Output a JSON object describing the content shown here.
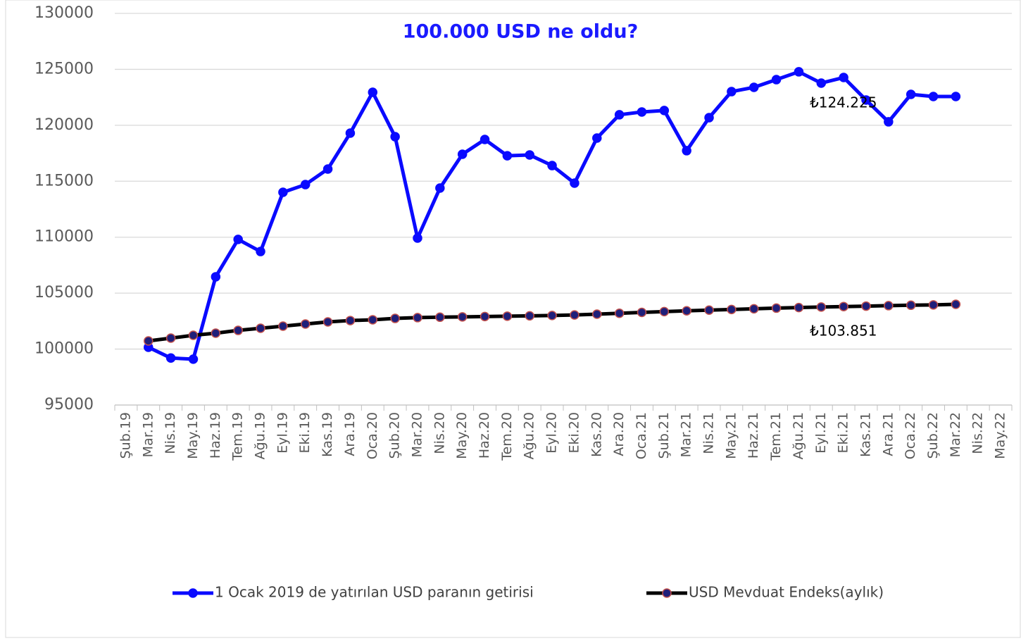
{
  "chart_data": {
    "type": "line",
    "title": "100.000 USD ne oldu?",
    "categories": [
      "Şub.19",
      "Mar.19",
      "Nis.19",
      "May.19",
      "Haz.19",
      "Tem.19",
      "Ağu.19",
      "Eyl.19",
      "Eki.19",
      "Kas.19",
      "Ara.19",
      "Oca.20",
      "Şub.20",
      "Mar.20",
      "Nis.20",
      "May.20",
      "Haz.20",
      "Tem.20",
      "Ağu.20",
      "Eyl.20",
      "Eki.20",
      "Kas.20",
      "Ara.20",
      "Oca.21",
      "Şub.21",
      "Mar.21",
      "Nis.21",
      "May.21",
      "Haz.21",
      "Tem.21",
      "Ağu.21",
      "Eyl.21",
      "Eki.21",
      "Kas.21",
      "Ara.21",
      "Oca.22",
      "Şub.22",
      "Mar.22",
      "Nis.22",
      "May.22"
    ],
    "series": [
      {
        "name": "1 Ocak 2019 de yatırılan USD paranın getirisi",
        "color": "#0a0aff",
        "marker_color": "#0a0aff",
        "values": [
          null,
          100160,
          99200,
          99100,
          106460,
          109800,
          108720,
          114010,
          114700,
          116090,
          119300,
          122950,
          118980,
          109920,
          114390,
          117410,
          118730,
          117280,
          117350,
          116400,
          114830,
          118860,
          120940,
          121190,
          121320,
          117730,
          120680,
          123010,
          123390,
          124080,
          124780,
          123770,
          124270,
          122260,
          120310,
          122760,
          122570,
          122570,
          null,
          null
        ]
      },
      {
        "name": "USD Mevduat Endeks(aylık)",
        "color": "#000000",
        "marker_color": "#1f1f7a",
        "values": [
          null,
          100730,
          100980,
          101230,
          101420,
          101670,
          101860,
          102050,
          102240,
          102430,
          102550,
          102620,
          102740,
          102810,
          102850,
          102880,
          102910,
          102940,
          102970,
          103000,
          103050,
          103120,
          103200,
          103280,
          103350,
          103420,
          103480,
          103540,
          103600,
          103660,
          103710,
          103760,
          103800,
          103840,
          103880,
          103920,
          103950,
          104000,
          null,
          null
        ]
      }
    ],
    "annotations": [
      "₺124.225",
      "₺103.851"
    ],
    "ylim": [
      95000,
      130000
    ],
    "yticks": [
      95000,
      100000,
      105000,
      110000,
      115000,
      120000,
      125000,
      130000
    ],
    "grid": true,
    "legend": "bottom"
  }
}
